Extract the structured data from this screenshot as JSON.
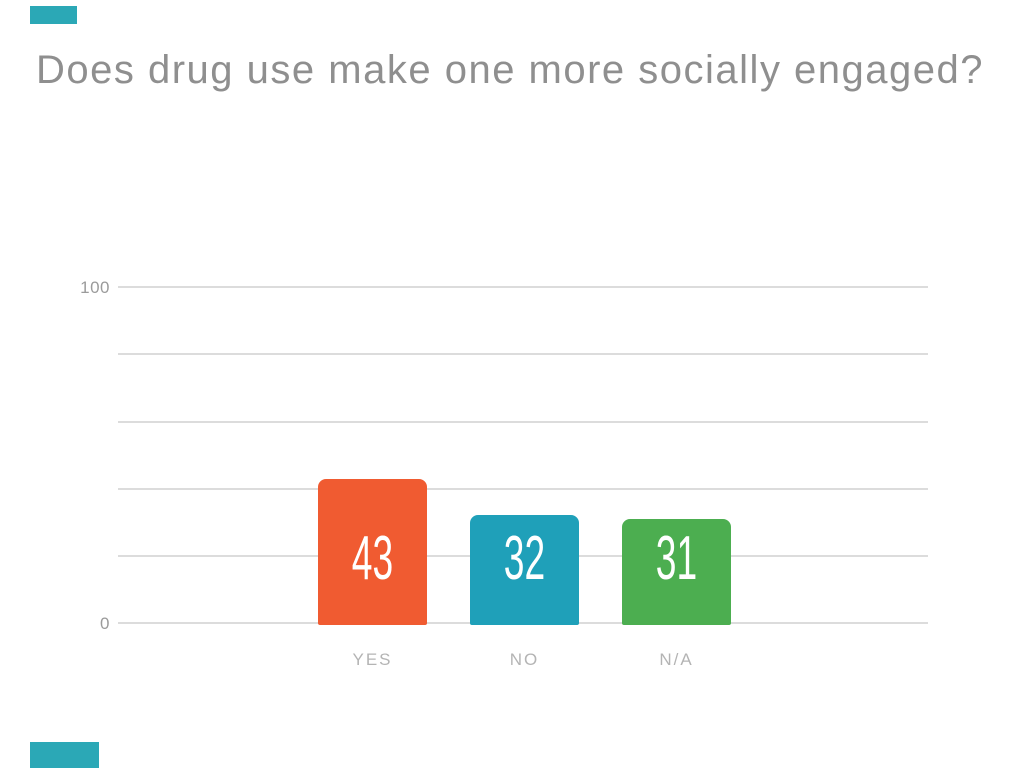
{
  "title": {
    "text": "Does drug use make one more socially engaged?",
    "color": "#8f8f8f"
  },
  "accents": {
    "color": "#2BA8B6"
  },
  "axis": {
    "tick_100": "100",
    "tick_0": "0",
    "tick_color": "#9b9b9b",
    "gridline_color": "#dcdcdc"
  },
  "bars": [
    {
      "label": "YES",
      "value": "43"
    },
    {
      "label": "NO",
      "value": "32"
    },
    {
      "label": "N/A",
      "value": "31"
    }
  ],
  "chart_data": {
    "type": "bar",
    "title": "Does drug use make one more socially engaged?",
    "categories": [
      "YES",
      "NO",
      "N/A"
    ],
    "values": [
      43,
      32,
      31
    ],
    "bar_colors": [
      "#F05B31",
      "#1FA0B9",
      "#4CAE50"
    ],
    "value_label_color": "#ffffff",
    "xlabel": "",
    "ylabel": "",
    "ylim": [
      0,
      100
    ],
    "gridline_step": 20,
    "y_ticks_shown": [
      "100",
      "0"
    ],
    "grid": "horizontal",
    "legend": "none"
  }
}
